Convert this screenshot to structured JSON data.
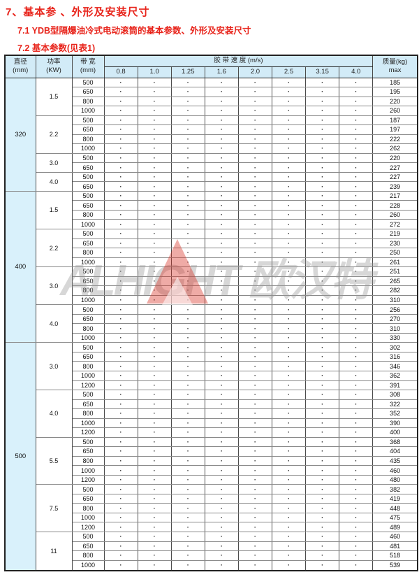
{
  "page": {
    "title": "7、基本参 、外形及安装尺寸",
    "subtitle1": "7.1   YDB型隔爆油冷式电动滚筒的基本参数、外形及安装尺寸",
    "subtitle2": "7.2   基本参数(见表1)"
  },
  "watermark": {
    "text": "ALHIGHT 欧汉特",
    "logo": "red-triangle",
    "logo_color": "#d62c20"
  },
  "colors": {
    "heading_red": "#e8241b",
    "header_bg": "#d2ebf7",
    "diameter_col_bg": "#d9f1fb",
    "border_dark": "#222222",
    "border_light": "#8a8a8a"
  },
  "table": {
    "dot": "·",
    "headers": {
      "diameter1": "直径",
      "diameter2": "(mm)",
      "power1": "功率",
      "power2": "(KW)",
      "bandwidth1": "带 宽",
      "bandwidth2": "(mm)",
      "speed_group": "胶 带 速 度 (m/s)",
      "speeds": [
        "0.8",
        "1.0",
        "1.25",
        "1.6",
        "2.0",
        "2.5",
        "3.15",
        "4.0"
      ],
      "mass1": "质量(kg)",
      "mass2": "max"
    },
    "groups": [
      {
        "diameter": "320",
        "powers": [
          {
            "power": "1.5",
            "rows": [
              {
                "width": "500",
                "mass": "185"
              },
              {
                "width": "650",
                "mass": "195"
              },
              {
                "width": "800",
                "mass": "220"
              },
              {
                "width": "1000",
                "mass": "260"
              }
            ]
          },
          {
            "power": "2.2",
            "rows": [
              {
                "width": "500",
                "mass": "187"
              },
              {
                "width": "650",
                "mass": "197"
              },
              {
                "width": "800",
                "mass": "222"
              },
              {
                "width": "1000",
                "mass": "262"
              }
            ]
          },
          {
            "power": "3.0",
            "rows": [
              {
                "width": "500",
                "mass": "220"
              },
              {
                "width": "650",
                "mass": "227"
              }
            ]
          },
          {
            "power": "4.0",
            "rows": [
              {
                "width": "500",
                "mass": "227"
              },
              {
                "width": "650",
                "mass": "239"
              }
            ]
          }
        ]
      },
      {
        "diameter": "400",
        "powers": [
          {
            "power": "1.5",
            "rows": [
              {
                "width": "500",
                "mass": "217"
              },
              {
                "width": "650",
                "mass": "228"
              },
              {
                "width": "800",
                "mass": "260"
              },
              {
                "width": "1000",
                "mass": "272"
              }
            ]
          },
          {
            "power": "2.2",
            "rows": [
              {
                "width": "500",
                "mass": "219"
              },
              {
                "width": "650",
                "mass": "230"
              },
              {
                "width": "800",
                "mass": "250"
              },
              {
                "width": "1000",
                "mass": "261"
              }
            ]
          },
          {
            "power": "3.0",
            "rows": [
              {
                "width": "500",
                "mass": "251"
              },
              {
                "width": "650",
                "mass": "265"
              },
              {
                "width": "800",
                "mass": "282"
              },
              {
                "width": "1000",
                "mass": "310"
              }
            ]
          },
          {
            "power": "4.0",
            "rows": [
              {
                "width": "500",
                "mass": "256"
              },
              {
                "width": "650",
                "mass": "270"
              },
              {
                "width": "800",
                "mass": "310"
              },
              {
                "width": "1000",
                "mass": "330"
              }
            ]
          }
        ]
      },
      {
        "diameter": "500",
        "powers": [
          {
            "power": "3.0",
            "rows": [
              {
                "width": "500",
                "mass": "302"
              },
              {
                "width": "650",
                "mass": "316"
              },
              {
                "width": "800",
                "mass": "346"
              },
              {
                "width": "1000",
                "mass": "362"
              },
              {
                "width": "1200",
                "mass": "391"
              }
            ]
          },
          {
            "power": "4.0",
            "rows": [
              {
                "width": "500",
                "mass": "308"
              },
              {
                "width": "650",
                "mass": "322"
              },
              {
                "width": "800",
                "mass": "352"
              },
              {
                "width": "1000",
                "mass": "390"
              },
              {
                "width": "1200",
                "mass": "400"
              }
            ]
          },
          {
            "power": "5.5",
            "rows": [
              {
                "width": "500",
                "mass": "368"
              },
              {
                "width": "650",
                "mass": "404"
              },
              {
                "width": "800",
                "mass": "435"
              },
              {
                "width": "1000",
                "mass": "460"
              },
              {
                "width": "1200",
                "mass": "480"
              }
            ]
          },
          {
            "power": "7.5",
            "rows": [
              {
                "width": "500",
                "mass": "382"
              },
              {
                "width": "650",
                "mass": "419"
              },
              {
                "width": "800",
                "mass": "448"
              },
              {
                "width": "1000",
                "mass": "475"
              },
              {
                "width": "1200",
                "mass": "489"
              }
            ]
          },
          {
            "power": "11",
            "rows": [
              {
                "width": "500",
                "mass": "460"
              },
              {
                "width": "650",
                "mass": "481"
              },
              {
                "width": "800",
                "mass": "518"
              },
              {
                "width": "1000",
                "mass": "539"
              }
            ]
          }
        ]
      }
    ]
  }
}
